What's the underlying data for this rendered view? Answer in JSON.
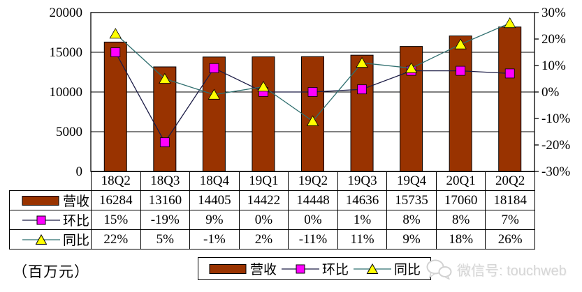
{
  "unit_label": "（百万元）",
  "watermark": {
    "text": "微信号: touchweb"
  },
  "chart_data": {
    "type": "bar+line-combo",
    "title": "",
    "categories": [
      "18Q2",
      "18Q3",
      "18Q4",
      "19Q1",
      "19Q2",
      "19Q3",
      "19Q4",
      "20Q1",
      "20Q2"
    ],
    "series": [
      {
        "id": "revenue",
        "name": "营收",
        "type": "bar",
        "axis": "left",
        "color": "#993300",
        "border_color": "#000000",
        "values": [
          16284,
          13160,
          14405,
          14422,
          14448,
          14636,
          15735,
          17060,
          18184
        ],
        "display": [
          "16284",
          "13160",
          "14405",
          "14422",
          "14448",
          "14636",
          "15735",
          "17060",
          "18184"
        ]
      },
      {
        "id": "qoq",
        "name": "环比",
        "type": "line",
        "axis": "right",
        "line_color": "#1c1c46",
        "marker": "square",
        "marker_color": "#FF00FF",
        "values": [
          15,
          -19,
          9,
          0,
          0,
          1,
          8,
          8,
          7
        ],
        "display": [
          "15%",
          "-19%",
          "9%",
          "0%",
          "0%",
          "1%",
          "8%",
          "8%",
          "7%"
        ]
      },
      {
        "id": "yoy",
        "name": "同比",
        "type": "line",
        "axis": "right",
        "line_color": "#2f6f6f",
        "marker": "triangle",
        "marker_color": "#FFFF00",
        "values": [
          22,
          5,
          -1,
          2,
          -11,
          11,
          9,
          18,
          26
        ],
        "display": [
          "22%",
          "5%",
          "-1%",
          "2%",
          "-11%",
          "11%",
          "9%",
          "18%",
          "26%"
        ]
      }
    ],
    "left_axis": {
      "min": 0,
      "max": 20000,
      "tick_values": [
        0,
        5000,
        10000,
        15000,
        20000
      ],
      "tick_labels": [
        "0",
        "5000",
        "10000",
        "15000",
        "20000"
      ]
    },
    "right_axis": {
      "min": -30,
      "max": 30,
      "tick_values": [
        -30,
        -20,
        -10,
        0,
        10,
        20,
        30
      ],
      "tick_labels": [
        "-30%",
        "-20%",
        "-10%",
        "0%",
        "10%",
        "20%",
        "30%"
      ]
    },
    "grid": true,
    "data_table": true,
    "legend_position": "bottom"
  }
}
